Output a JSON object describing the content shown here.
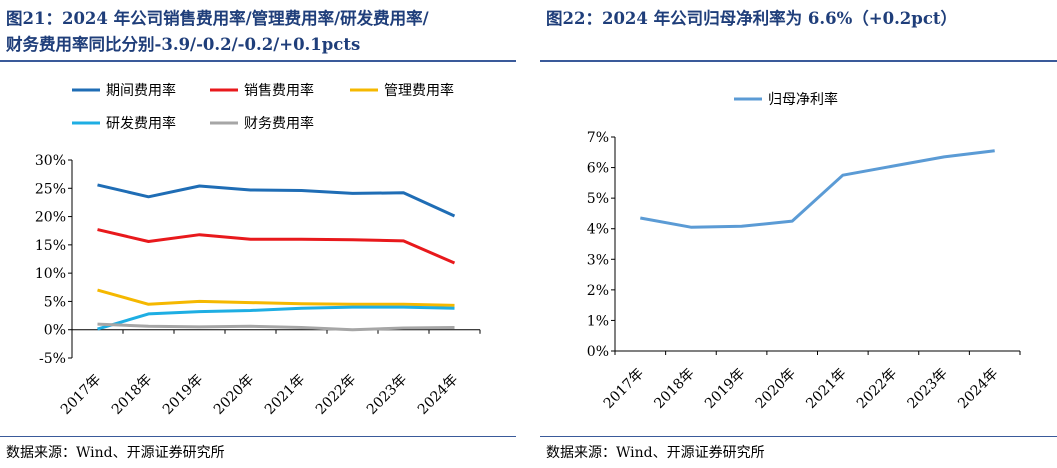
{
  "left": {
    "title_line1": "图21：2024 年公司销售费用率/管理费用率/研发费用率/",
    "title_line2": "财务费用率同比分别-3.9/-0.2/-0.2/+0.1pcts",
    "source": "数据来源：Wind、开源证券研究所"
  },
  "right": {
    "title_line1": "图22：2024 年公司归母净利率为 6.6%（+0.2pct）",
    "source": "数据来源：Wind、开源证券研究所"
  },
  "chart_data": [
    {
      "type": "line",
      "categories": [
        "2017年",
        "2018年",
        "2019年",
        "2020年",
        "2021年",
        "2022年",
        "2023年",
        "2024年"
      ],
      "ylim": [
        -5,
        30
      ],
      "yticks": [
        "-5%",
        "0%",
        "5%",
        "10%",
        "15%",
        "20%",
        "25%",
        "30%"
      ],
      "ytick_values": [
        -5,
        0,
        5,
        10,
        15,
        20,
        25,
        30
      ],
      "legend_placement": "top",
      "series": [
        {
          "name": "期间费用率",
          "color": "#1f6db5",
          "values": [
            25.6,
            23.5,
            25.4,
            24.7,
            24.6,
            24.1,
            24.2,
            20.1
          ]
        },
        {
          "name": "销售费用率",
          "color": "#e8191c",
          "values": [
            17.7,
            15.6,
            16.8,
            16.0,
            16.0,
            15.9,
            15.7,
            11.8
          ]
        },
        {
          "name": "管理费用率",
          "color": "#f5b800",
          "values": [
            7.0,
            4.5,
            5.0,
            4.8,
            4.6,
            4.5,
            4.5,
            4.3
          ]
        },
        {
          "name": "研发费用率",
          "color": "#1eaee3",
          "values": [
            0.1,
            2.8,
            3.2,
            3.4,
            3.8,
            4.0,
            4.0,
            3.8
          ]
        },
        {
          "name": "财务费用率",
          "color": "#a6a6a6",
          "values": [
            1.0,
            0.6,
            0.5,
            0.6,
            0.4,
            0.0,
            0.3,
            0.4
          ]
        }
      ]
    },
    {
      "type": "line",
      "categories": [
        "2017年",
        "2018年",
        "2019年",
        "2020年",
        "2021年",
        "2022年",
        "2023年",
        "2024年"
      ],
      "ylim": [
        0,
        7
      ],
      "yticks": [
        "0%",
        "1%",
        "2%",
        "3%",
        "4%",
        "5%",
        "6%",
        "7%"
      ],
      "ytick_values": [
        0,
        1,
        2,
        3,
        4,
        5,
        6,
        7
      ],
      "legend_placement": "top",
      "series": [
        {
          "name": "归母净利率",
          "color": "#5b9bd5",
          "values": [
            4.35,
            4.05,
            4.08,
            4.25,
            5.75,
            6.05,
            6.35,
            6.55
          ]
        }
      ]
    }
  ]
}
